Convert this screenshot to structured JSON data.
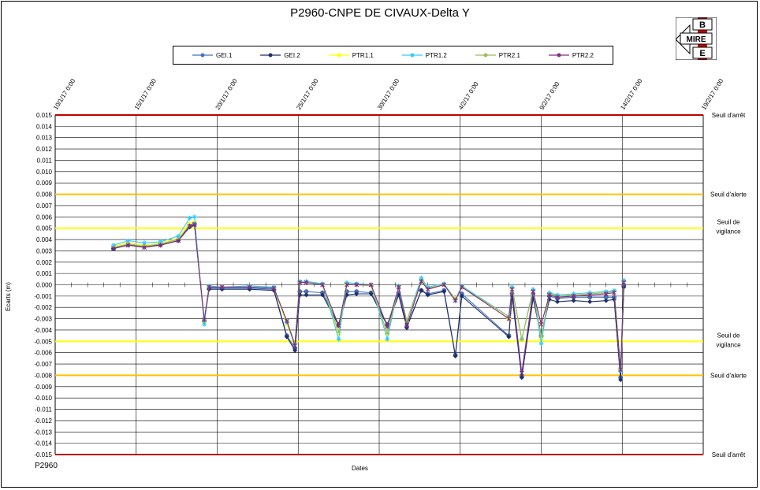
{
  "chart_data": {
    "type": "line",
    "title": "P2960-CNPE DE CIVAUX-Delta Y",
    "xlabel": "Dates",
    "ylabel": "Ecarts (m)",
    "source_label": "P2960",
    "ylim": [
      -0.015,
      0.015
    ],
    "y_tick_step": 0.001,
    "y_ticks": [
      "0.015",
      "0.014",
      "0.013",
      "0.012",
      "0.011",
      "0.010",
      "0.009",
      "0.008",
      "0.007",
      "0.006",
      "0.005",
      "0.004",
      "0.003",
      "0.002",
      "0.001",
      "0.000",
      "-0.001",
      "-0.002",
      "-0.003",
      "-0.004",
      "-0.005",
      "-0.006",
      "-0.007",
      "-0.008",
      "-0.009",
      "-0.010",
      "-0.011",
      "-0.012",
      "-0.013",
      "-0.014",
      "-0.015"
    ],
    "x_ticks": [
      "10/1/17 0:00",
      "15/1/17 0:00",
      "20/1/17 0:00",
      "25/1/17 0:00",
      "30/1/17 0:00",
      "4/2/17 0:00",
      "9/2/17 0:00",
      "14/2/17 0:00",
      "19/2/17 0:00"
    ],
    "x_tick_days": [
      0,
      5,
      10,
      15,
      20,
      25,
      30,
      35,
      40
    ],
    "xlim_days": [
      0,
      40
    ],
    "grid": true,
    "legend_position": "top-center",
    "thresholds": [
      {
        "name": "Seuil d'arrêt",
        "value": 0.015,
        "color": "#c00000",
        "label_lines": [
          "Seuil d'arrêt"
        ]
      },
      {
        "name": "Seuil d'alerte",
        "value": 0.008,
        "color": "#ffc000",
        "label_lines": [
          "Seuil d'alerte"
        ]
      },
      {
        "name": "Seuil de vigilance",
        "value": 0.005,
        "color": "#ffff00",
        "label_lines": [
          "Seuil de",
          "vigilance"
        ]
      },
      {
        "name": "Seuil de vigilance",
        "value": -0.005,
        "color": "#ffff00",
        "label_lines": [
          "Seuil de",
          "vigilance"
        ]
      },
      {
        "name": "Seuil d'alerte",
        "value": -0.008,
        "color": "#ffc000",
        "label_lines": [
          "Seuil d'alerte"
        ]
      },
      {
        "name": "Seuil d'arrêt",
        "value": -0.015,
        "color": "#c00000",
        "label_lines": [
          "Seuil d'arrêt"
        ]
      }
    ],
    "series": [
      {
        "name": "GEI.1",
        "color": "#4472c4",
        "marker": "circle",
        "x": [
          3.6,
          4.5,
          5.5,
          6.5,
          7.6,
          8.3,
          8.6,
          9.2,
          9.5,
          10.3,
          12,
          13.5,
          14.3,
          14.8,
          15.1,
          15.5,
          16.5,
          17.5,
          18,
          18.6,
          19.5,
          20.5,
          21.2,
          21.7,
          22.6,
          23,
          24,
          24.7,
          25.1,
          28,
          28.2,
          28.8,
          29.5,
          30,
          30.5,
          31,
          32,
          33,
          34,
          34.5,
          34.9,
          35.1
        ],
        "y": [
          0.0032,
          0.0036,
          0.0034,
          0.0036,
          0.004,
          0.0052,
          0.0054,
          -0.0032,
          -0.0003,
          -0.0003,
          -0.0003,
          -0.0004,
          -0.0045,
          -0.0056,
          -0.0006,
          -0.0006,
          -0.0007,
          -0.0035,
          -0.0006,
          -0.0006,
          -0.0007,
          -0.0035,
          -0.0007,
          -0.0037,
          -0.0005,
          -0.0008,
          -0.0005,
          -0.0062,
          -0.0008,
          -0.0045,
          -0.0008,
          -0.0081,
          -0.0008,
          -0.0045,
          -0.001,
          -0.0012,
          -0.0011,
          -0.0011,
          -0.0011,
          -0.0011,
          -0.0082,
          -0.0001
        ]
      },
      {
        "name": "GEI.2",
        "color": "#1f2f6b",
        "marker": "diamond",
        "x": [
          3.6,
          4.5,
          5.5,
          6.5,
          7.6,
          8.3,
          8.6,
          9.2,
          9.5,
          10.3,
          12,
          13.5,
          14.3,
          14.8,
          15.1,
          15.5,
          16.5,
          17.5,
          18,
          18.6,
          19.5,
          20.5,
          21.2,
          21.7,
          22.6,
          23,
          24,
          24.7,
          25.1,
          28,
          28.2,
          28.8,
          29.5,
          30,
          30.5,
          31,
          32,
          33,
          34,
          34.5,
          34.9,
          35.1
        ],
        "y": [
          0.0032,
          0.0035,
          0.0034,
          0.0035,
          0.0039,
          0.0051,
          0.0053,
          -0.0033,
          -0.0004,
          -0.0004,
          -0.0004,
          -0.0005,
          -0.0046,
          -0.0058,
          -0.0009,
          -0.0009,
          -0.0009,
          -0.0036,
          -0.0009,
          -0.0008,
          -0.0008,
          -0.0036,
          -0.0009,
          -0.0038,
          -0.0005,
          -0.0009,
          -0.0006,
          -0.0063,
          -0.001,
          -0.0046,
          -0.001,
          -0.0082,
          -0.0012,
          -0.0046,
          -0.0013,
          -0.0015,
          -0.0014,
          -0.0015,
          -0.0014,
          -0.0013,
          -0.0084,
          -0.0002
        ]
      },
      {
        "name": "PTR1.1",
        "color": "#ffff00",
        "marker": "dash",
        "x": [
          3.6,
          4.5,
          5.5,
          6.5,
          7.6,
          8.3,
          8.6,
          9.2,
          9.5,
          10.3,
          12,
          13.5,
          14.3,
          14.8,
          15.1,
          15.5,
          16.5,
          17.5,
          18,
          18.6,
          19.5,
          20.5,
          21.2,
          21.7,
          22.6,
          23,
          24,
          24.7,
          25.1,
          28,
          28.2,
          28.8,
          29.5,
          30,
          30.5,
          31,
          32,
          33,
          34,
          34.5,
          34.9,
          35.1
        ],
        "y": [
          0.0034,
          0.0037,
          0.0035,
          0.0037,
          0.0041,
          0.0055,
          0.0056,
          -0.0033,
          -0.0002,
          -0.0002,
          -0.0002,
          -0.0003,
          -0.0035,
          -0.0052,
          0.0002,
          0.0002,
          0.0001,
          -0.0044,
          0,
          0,
          -0.0001,
          -0.0044,
          -0.0002,
          -0.0033,
          0.0005,
          -0.0003,
          0,
          -0.0012,
          -0.0002,
          -0.003,
          -0.0003,
          -0.0049,
          -0.0005,
          -0.0048,
          -0.0008,
          -0.001,
          -0.0009,
          -0.0008,
          -0.0007,
          -0.0006,
          -0.0075,
          0.0003
        ]
      },
      {
        "name": "PTR1.2",
        "color": "#33ccff",
        "marker": "star",
        "x": [
          3.6,
          4.5,
          5.5,
          6.5,
          7.6,
          8.3,
          8.6,
          9.2,
          9.5,
          10.3,
          12,
          13.5,
          14.3,
          14.8,
          15.1,
          15.5,
          16.5,
          17.5,
          18,
          18.6,
          19.5,
          20.5,
          21.2,
          21.7,
          22.6,
          23,
          24,
          24.7,
          25.1,
          28,
          28.2,
          28.8,
          29.5,
          30,
          30.5,
          31,
          32,
          33,
          34,
          34.5,
          34.9,
          35.1
        ],
        "y": [
          0.0035,
          0.0039,
          0.0037,
          0.0038,
          0.0043,
          0.0059,
          0.006,
          -0.0035,
          -0.0001,
          -0.0002,
          -0.0001,
          -0.0002,
          -0.0033,
          -0.0052,
          0.0003,
          0.0003,
          0.0001,
          -0.0048,
          0.0002,
          0.0001,
          0,
          -0.0048,
          -0.0001,
          -0.0032,
          0.0006,
          -0.0002,
          0.0001,
          -0.0013,
          -0.0001,
          -0.0028,
          -0.0002,
          -0.0048,
          -0.0004,
          -0.0052,
          -0.0007,
          -0.0009,
          -0.0008,
          -0.0007,
          -0.0006,
          -0.0005,
          -0.0076,
          0.0004
        ]
      },
      {
        "name": "PTR2.1",
        "color": "#9bbb59",
        "marker": "dash",
        "x": [
          3.6,
          4.5,
          5.5,
          6.5,
          7.6,
          8.3,
          8.6,
          9.2,
          9.5,
          10.3,
          12,
          13.5,
          14.3,
          14.8,
          15.1,
          15.5,
          16.5,
          17.5,
          18,
          18.6,
          19.5,
          20.5,
          21.2,
          21.7,
          22.6,
          23,
          24,
          24.7,
          25.1,
          28,
          28.2,
          28.8,
          29.5,
          30,
          30.5,
          31,
          32,
          33,
          34,
          34.5,
          34.9,
          35.1
        ],
        "y": [
          0.0033,
          0.0036,
          0.0034,
          0.0036,
          0.004,
          0.0053,
          0.0054,
          -0.0031,
          -0.0002,
          -0.0002,
          -0.0002,
          -0.0003,
          -0.0032,
          -0.0052,
          0.0002,
          0.0002,
          0,
          -0.0042,
          0.0001,
          0,
          -0.0001,
          -0.0043,
          -0.0002,
          -0.0032,
          0.0004,
          -0.0003,
          0,
          -0.0013,
          -0.0002,
          -0.0028,
          -0.0003,
          -0.0048,
          -0.0005,
          -0.0046,
          -0.0008,
          -0.001,
          -0.0009,
          -0.0008,
          -0.0007,
          -0.0006,
          -0.0075,
          0.0003
        ]
      },
      {
        "name": "PTR2.2",
        "color": "#7f2f7f",
        "marker": "cross",
        "x": [
          3.6,
          4.5,
          5.5,
          6.5,
          7.6,
          8.3,
          8.6,
          9.2,
          9.5,
          10.3,
          12,
          13.5,
          14.3,
          14.8,
          15.1,
          15.5,
          16.5,
          17.5,
          18,
          18.6,
          19.5,
          20.5,
          21.2,
          21.7,
          22.6,
          23,
          24,
          24.7,
          25.1,
          28,
          28.2,
          28.8,
          29.5,
          30,
          30.5,
          31,
          32,
          33,
          34,
          34.5,
          34.9,
          35.1
        ],
        "y": [
          0.0032,
          0.0035,
          0.0033,
          0.0035,
          0.0039,
          0.0052,
          0.0053,
          -0.0031,
          -0.0002,
          -0.0002,
          -0.0002,
          -0.0003,
          -0.0032,
          -0.0054,
          0.0002,
          0.0002,
          0,
          -0.0036,
          0,
          0,
          0,
          -0.0037,
          -0.0002,
          -0.0036,
          0.0003,
          -0.0004,
          0,
          -0.0014,
          -0.0002,
          -0.003,
          -0.0004,
          -0.0078,
          -0.0006,
          -0.0035,
          -0.0009,
          -0.0011,
          -0.001,
          -0.0009,
          -0.0008,
          -0.0007,
          -0.0075,
          0.0002
        ]
      }
    ]
  },
  "logo": {
    "text": "MIRE",
    "letters": [
      "B",
      "E",
      "E"
    ]
  }
}
